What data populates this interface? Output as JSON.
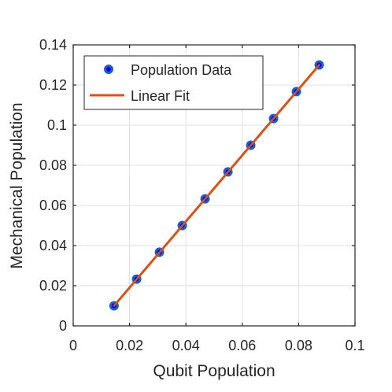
{
  "chart_data": {
    "type": "scatter",
    "xlabel": "Qubit Population",
    "ylabel": "Mechanical Population",
    "xlim": [
      0,
      0.1
    ],
    "ylim": [
      0,
      0.14
    ],
    "xticks": [
      0,
      0.02,
      0.04,
      0.06,
      0.08,
      0.1
    ],
    "xtick_labels": [
      "0",
      "0.02",
      "0.04",
      "0.06",
      "0.08",
      "0.1"
    ],
    "yticks": [
      0,
      0.02,
      0.04,
      0.06,
      0.08,
      0.1,
      0.12,
      0.14
    ],
    "ytick_labels": [
      "0",
      "0.02",
      "0.04",
      "0.06",
      "0.08",
      "0.1",
      "0.12",
      "0.14"
    ],
    "grid": true,
    "legend_position": "top-left",
    "series": [
      {
        "name": "Population Data",
        "kind": "markers",
        "color": "#0000ff",
        "edge_color": "#1f5fbf",
        "x": [
          0.0145,
          0.0225,
          0.0306,
          0.0387,
          0.0468,
          0.0549,
          0.063,
          0.0711,
          0.0792,
          0.0873
        ],
        "y": [
          0.01,
          0.0233,
          0.0367,
          0.05,
          0.0633,
          0.0767,
          0.09,
          0.1033,
          0.1167,
          0.13
        ]
      },
      {
        "name": "Linear Fit",
        "kind": "line",
        "color": "#d95319",
        "x": [
          0.0145,
          0.0873
        ],
        "y": [
          0.01,
          0.13
        ]
      }
    ]
  }
}
